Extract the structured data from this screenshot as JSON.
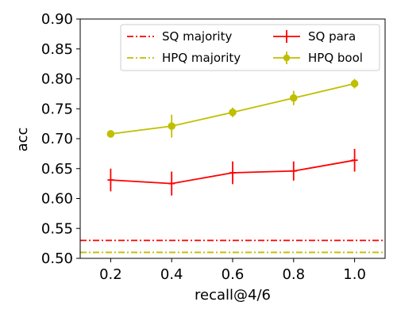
{
  "chart_data": {
    "type": "line",
    "xlabel": "recall@4/6",
    "ylabel": "acc",
    "xlim": [
      0.1,
      1.1
    ],
    "ylim": [
      0.5,
      0.9
    ],
    "xticks": [
      "0.2",
      "0.4",
      "0.6",
      "0.8",
      "1.0"
    ],
    "yticks": [
      "0.50",
      "0.55",
      "0.60",
      "0.65",
      "0.70",
      "0.75",
      "0.80",
      "0.85",
      "0.90"
    ],
    "grid": false,
    "legend_position": "top-right",
    "series": [
      {
        "name": "SQ para",
        "style": "errorbar",
        "marker": "plus",
        "color": "#ff0000",
        "x": [
          0.2,
          0.4,
          0.6,
          0.8,
          1.0
        ],
        "y": [
          0.631,
          0.625,
          0.643,
          0.646,
          0.664
        ],
        "error": [
          0.019,
          0.02,
          0.019,
          0.016,
          0.019
        ]
      },
      {
        "name": "HPQ bool",
        "style": "errorbar",
        "marker": "circle",
        "color": "#bfbf00",
        "x": [
          0.2,
          0.4,
          0.6,
          0.8,
          1.0
        ],
        "y": [
          0.708,
          0.721,
          0.744,
          0.768,
          0.792
        ],
        "error": [
          0.006,
          0.019,
          0.008,
          0.012,
          0.008
        ]
      },
      {
        "name": "SQ majority",
        "style": "hline",
        "dash": "dashdot",
        "color": "#ff0000",
        "y": 0.53
      },
      {
        "name": "HPQ majority",
        "style": "hline",
        "dash": "dashdot",
        "color": "#bfbf00",
        "y": 0.51
      }
    ],
    "legend": [
      [
        "SQ majority",
        "SQ para"
      ],
      [
        "HPQ majority",
        "HPQ bool"
      ]
    ]
  }
}
